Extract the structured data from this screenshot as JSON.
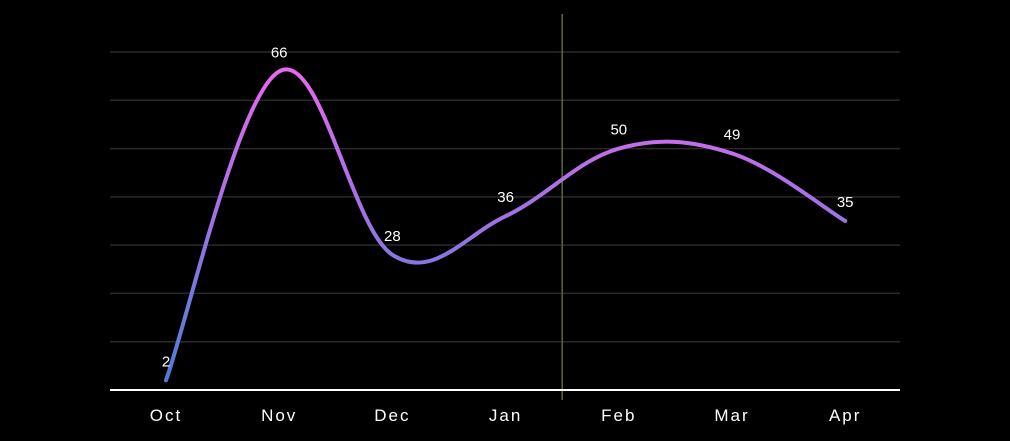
{
  "chart_data": {
    "type": "line",
    "categories": [
      "Oct",
      "Nov",
      "Dec",
      "Jan",
      "Feb",
      "Mar",
      "Apr"
    ],
    "values": [
      2,
      66,
      28,
      36,
      50,
      49,
      35
    ],
    "data_labels": [
      "2",
      "66",
      "28",
      "36",
      "50",
      "49",
      "35"
    ],
    "ylim": [
      0,
      70
    ],
    "grid": true,
    "smooth": true,
    "colors": {
      "background": "#000000",
      "line_start": "#4b7fd6",
      "line_end": "#e868f0",
      "grid": "#2a2a2a",
      "axis": "#ffffff",
      "marker_line": "#5c6a2a"
    }
  }
}
